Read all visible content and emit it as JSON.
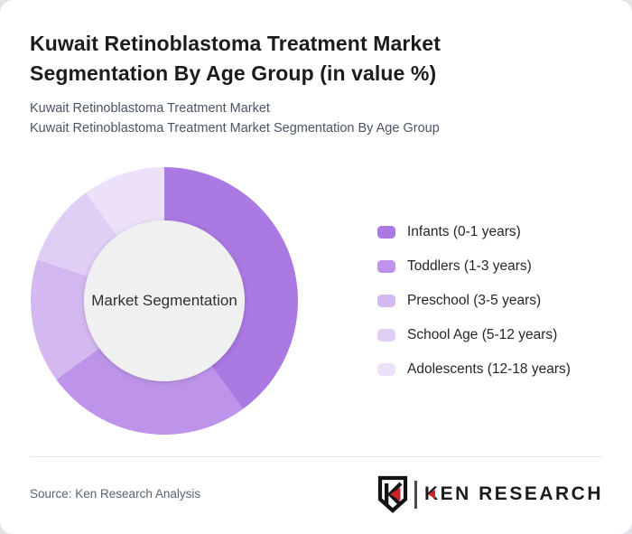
{
  "page": {
    "title_lines": [
      "Kuwait Retinoblastoma Treatment Market",
      "Segmentation By Age Group (in value %)"
    ],
    "subtitle_lines": [
      "Kuwait Retinoblastoma Treatment Market",
      "Kuwait Retinoblastoma Treatment Market Segmentation By Age Group"
    ]
  },
  "chart_data": {
    "type": "pie",
    "variant": "donut",
    "title": "Kuwait Retinoblastoma Treatment Market Segmentation By Age Group (in value %)",
    "unit": "value %",
    "center_label": "Market Segmentation",
    "start_angle_deg": 0,
    "direction": "clockwise",
    "inner_radius_ratio": 0.6,
    "legend_position": "right",
    "segments": [
      {
        "label": "Infants (0-1 years)",
        "value": 40,
        "color": "#aa79e2"
      },
      {
        "label": "Toddlers (1-3 years)",
        "value": 25,
        "color": "#bd94e9"
      },
      {
        "label": "Preschool (3-5 years)",
        "value": 15,
        "color": "#d4b8f0"
      },
      {
        "label": "School Age (5-12 years)",
        "value": 10,
        "color": "#e1cef5"
      },
      {
        "label": "Adolescents (12-18 years)",
        "value": 10,
        "color": "#ece1f9"
      }
    ],
    "inner_circle_color": "#f0f0f1"
  },
  "footer": {
    "source": "Source: Ken Research Analysis",
    "logo_text": "KEN RESEARCH",
    "logo_red": "#c8242c",
    "logo_dark": "#141414"
  }
}
